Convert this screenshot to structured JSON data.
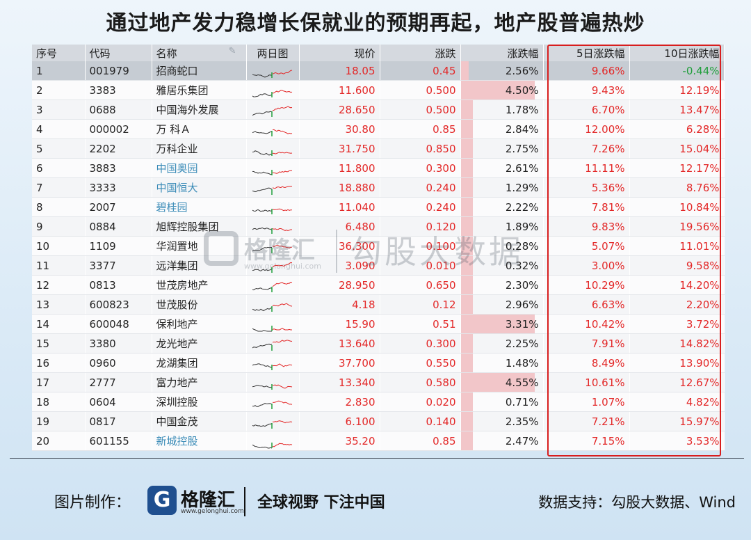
{
  "title": "通过地产发力稳增长保就业的预期再起，地产股普遍热炒",
  "columns": {
    "seq": "序号",
    "code": "代码",
    "name": "名称",
    "chart": "两日图",
    "price": "现价",
    "change": "涨跌",
    "pct": "涨跌幅",
    "pct5": "5日涨跌幅",
    "pct10": "10日涨跌幅"
  },
  "rows": [
    {
      "seq": "1",
      "code": "001979",
      "name": "招商蛇口",
      "price": "18.05",
      "change": "0.45",
      "pct": "2.56%",
      "pct5": "9.66%",
      "pct10": "-0.44%",
      "heat": 0.1,
      "link": false,
      "selected": true
    },
    {
      "seq": "2",
      "code": "3383",
      "name": "雅居乐集团",
      "price": "11.600",
      "change": "0.500",
      "pct": "4.50%",
      "pct5": "9.43%",
      "pct10": "12.19%",
      "heat": 0.9,
      "link": false
    },
    {
      "seq": "3",
      "code": "0688",
      "name": "中国海外发展",
      "price": "28.650",
      "change": "0.500",
      "pct": "1.78%",
      "pct5": "6.70%",
      "pct10": "13.47%",
      "heat": 0.15,
      "link": false
    },
    {
      "seq": "4",
      "code": "000002",
      "name": "万 科Ａ",
      "price": "30.80",
      "change": "0.85",
      "pct": "2.84%",
      "pct5": "12.00%",
      "pct10": "6.28%",
      "heat": 0.15,
      "link": false
    },
    {
      "seq": "5",
      "code": "2202",
      "name": "万科企业",
      "price": "31.750",
      "change": "0.850",
      "pct": "2.75%",
      "pct5": "7.26%",
      "pct10": "15.04%",
      "heat": 0.15,
      "link": false
    },
    {
      "seq": "6",
      "code": "3883",
      "name": "中国奥园",
      "price": "11.800",
      "change": "0.300",
      "pct": "2.61%",
      "pct5": "11.11%",
      "pct10": "12.17%",
      "heat": 0.15,
      "link": true
    },
    {
      "seq": "7",
      "code": "3333",
      "name": "中国恒大",
      "price": "18.880",
      "change": "0.240",
      "pct": "1.29%",
      "pct5": "5.36%",
      "pct10": "8.76%",
      "heat": 0.15,
      "link": true
    },
    {
      "seq": "8",
      "code": "2007",
      "name": "碧桂园",
      "price": "11.040",
      "change": "0.240",
      "pct": "2.22%",
      "pct5": "7.81%",
      "pct10": "10.84%",
      "heat": 0.15,
      "link": true
    },
    {
      "seq": "9",
      "code": "0884",
      "name": "旭辉控股集团",
      "price": "6.480",
      "change": "0.120",
      "pct": "1.89%",
      "pct5": "9.83%",
      "pct10": "19.56%",
      "heat": 0.15,
      "link": false
    },
    {
      "seq": "10",
      "code": "1109",
      "name": "华润置地",
      "price": "36.300",
      "change": "0.100",
      "pct": "0.28%",
      "pct5": "5.07%",
      "pct10": "11.01%",
      "heat": 0.15,
      "link": false
    },
    {
      "seq": "11",
      "code": "3377",
      "name": "远洋集团",
      "price": "3.090",
      "change": "0.010",
      "pct": "0.32%",
      "pct5": "3.00%",
      "pct10": "9.58%",
      "heat": 0.15,
      "link": false
    },
    {
      "seq": "12",
      "code": "0813",
      "name": "世茂房地产",
      "price": "28.950",
      "change": "0.650",
      "pct": "2.30%",
      "pct5": "10.29%",
      "pct10": "14.20%",
      "heat": 0.15,
      "link": false
    },
    {
      "seq": "13",
      "code": "600823",
      "name": "世茂股份",
      "price": "4.18",
      "change": "0.12",
      "pct": "2.96%",
      "pct5": "6.63%",
      "pct10": "2.20%",
      "heat": 0.15,
      "link": false
    },
    {
      "seq": "14",
      "code": "600048",
      "name": "保利地产",
      "price": "15.90",
      "change": "0.51",
      "pct": "3.31%",
      "pct5": "10.42%",
      "pct10": "3.72%",
      "heat": 0.9,
      "link": false
    },
    {
      "seq": "15",
      "code": "3380",
      "name": "龙光地产",
      "price": "13.640",
      "change": "0.300",
      "pct": "2.25%",
      "pct5": "7.91%",
      "pct10": "14.82%",
      "heat": 0.15,
      "link": false
    },
    {
      "seq": "16",
      "code": "0960",
      "name": "龙湖集团",
      "price": "37.700",
      "change": "0.550",
      "pct": "1.48%",
      "pct5": "8.49%",
      "pct10": "13.90%",
      "heat": 0.15,
      "link": false
    },
    {
      "seq": "17",
      "code": "2777",
      "name": "富力地产",
      "price": "13.340",
      "change": "0.580",
      "pct": "4.55%",
      "pct5": "10.61%",
      "pct10": "12.67%",
      "heat": 0.9,
      "link": false
    },
    {
      "seq": "18",
      "code": "0604",
      "name": "深圳控股",
      "price": "2.830",
      "change": "0.020",
      "pct": "0.71%",
      "pct5": "1.07%",
      "pct10": "4.82%",
      "heat": 0.15,
      "link": false
    },
    {
      "seq": "19",
      "code": "0817",
      "name": "中国金茂",
      "price": "6.100",
      "change": "0.140",
      "pct": "2.35%",
      "pct5": "7.21%",
      "pct10": "15.97%",
      "heat": 0.15,
      "link": false
    },
    {
      "seq": "20",
      "code": "601155",
      "name": "新城控股",
      "price": "35.20",
      "change": "0.85",
      "pct": "2.47%",
      "pct5": "7.15%",
      "pct10": "3.53%",
      "heat": 0.15,
      "link": true
    }
  ],
  "watermark": {
    "brand": "格隆汇",
    "url": "www.gelonghui.com",
    "text": "勾股大数据"
  },
  "footer": {
    "credit_label": "图片制作：",
    "brand": "格隆汇",
    "brand_url": "www.gelonghui.com",
    "slogan": "全球视野 下注中国",
    "source": "数据支持：勾股大数据、Wind"
  },
  "colors": {
    "up": "#e32727",
    "down": "#1f9e3a",
    "link": "#3a8bb7",
    "frame": "#d81e1e",
    "heat": "#f2c6c9"
  },
  "icons": {
    "name_header": "pencil-icon",
    "footer_logo": "gelonghui-logo-icon"
  }
}
